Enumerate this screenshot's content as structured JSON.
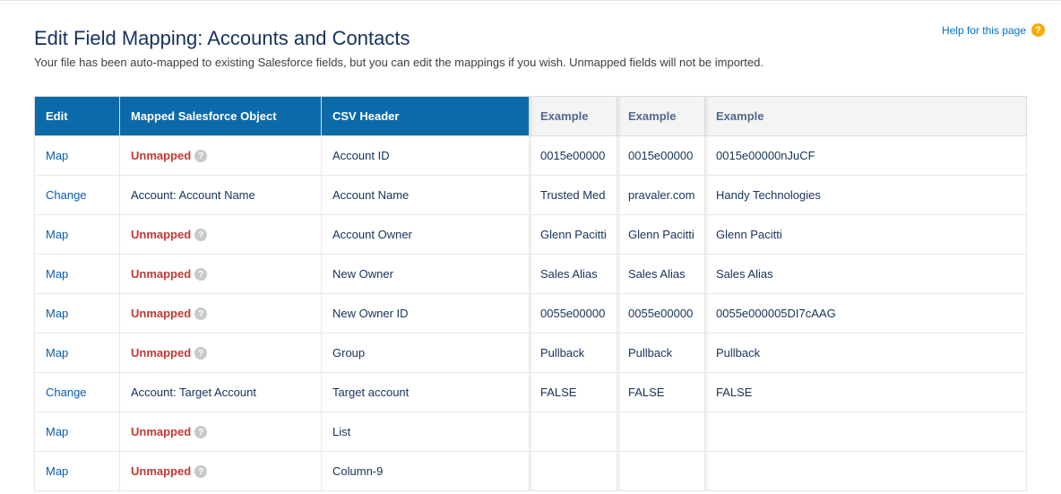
{
  "help": {
    "label": "Help for this page",
    "icon_glyph": "?"
  },
  "header": {
    "title": "Edit Field Mapping: Accounts and Contacts",
    "subtitle": "Your file has been auto-mapped to existing Salesforce fields, but you can edit the mappings if you wish. Unmapped fields will not be imported."
  },
  "labels": {
    "map": "Map",
    "change": "Change",
    "unmapped": "Unmapped"
  },
  "colors": {
    "header_blue": "#0d6aa8",
    "unmapped_red": "#c23934",
    "link_blue": "#0b5cab",
    "example_grey": "#97a2b0",
    "help_orange": "#f8ab00"
  },
  "table": {
    "columns": {
      "edit": "Edit",
      "mapped": "Mapped Salesforce Object",
      "csv": "CSV Header",
      "ex1": "Example",
      "ex2": "Example",
      "ex3": "Example"
    },
    "rows": [
      {
        "action": "map",
        "obj": null,
        "csv": "Account ID",
        "ex": [
          "0015e00000",
          "0015e00000",
          "0015e00000nJuCF"
        ]
      },
      {
        "action": "change",
        "obj": "Account: Account Name",
        "csv": "Account Name",
        "ex": [
          "Trusted Med",
          "pravaler.com",
          "Handy Technologies"
        ]
      },
      {
        "action": "map",
        "obj": null,
        "csv": "Account Owner",
        "ex": [
          "Glenn Pacitti",
          "Glenn Pacitti",
          "Glenn Pacitti"
        ]
      },
      {
        "action": "map",
        "obj": null,
        "csv": "New Owner",
        "ex": [
          "Sales Alias",
          "Sales Alias",
          "Sales Alias"
        ]
      },
      {
        "action": "map",
        "obj": null,
        "csv": "New Owner ID",
        "ex": [
          "0055e00000",
          "0055e00000",
          "0055e000005DI7cAAG"
        ]
      },
      {
        "action": "map",
        "obj": null,
        "csv": "Group",
        "ex": [
          "Pullback",
          "Pullback",
          "Pullback"
        ]
      },
      {
        "action": "change",
        "obj": "Account: Target Account",
        "csv": "Target account",
        "ex": [
          "FALSE",
          "FALSE",
          "FALSE"
        ]
      },
      {
        "action": "map",
        "obj": null,
        "csv": "List",
        "ex": [
          "",
          "",
          ""
        ]
      },
      {
        "action": "map",
        "obj": null,
        "csv": "Column-9",
        "ex": [
          "",
          "",
          ""
        ]
      }
    ]
  }
}
